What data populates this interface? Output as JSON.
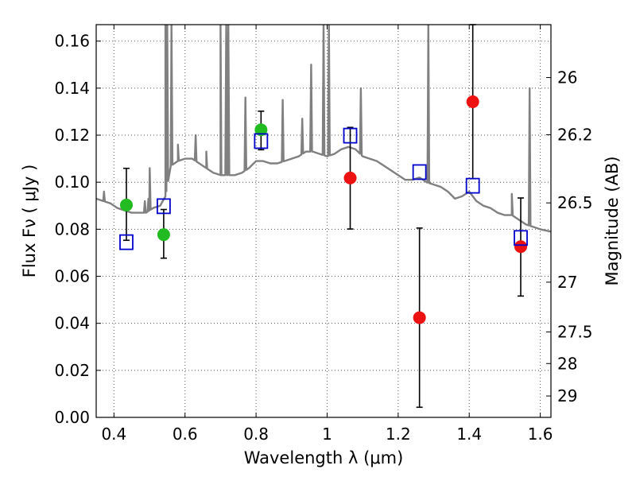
{
  "chart_data": {
    "type": "scatter",
    "xlabel": "Wavelength  λ (μm)",
    "ylabel": "Flux  Fν  ( μJy )",
    "ylabel_right": "Magnitude (AB)",
    "xlim": [
      0.35,
      1.63
    ],
    "ylim": [
      0.0,
      0.167
    ],
    "grid": true,
    "x_ticks": [
      0.4,
      0.6,
      0.8,
      1.0,
      1.2,
      1.4,
      1.6
    ],
    "x_tick_labels": [
      "0.4",
      "0.6",
      "0.8",
      "1",
      "1.2",
      "1.4",
      "1.6"
    ],
    "y_ticks": [
      0.0,
      0.02,
      0.04,
      0.06,
      0.08,
      0.1,
      0.12,
      0.14,
      0.16
    ],
    "y_tick_labels": [
      "0.00",
      "0.02",
      "0.04",
      "0.06",
      "0.08",
      "0.10",
      "0.12",
      "0.14",
      "0.16"
    ],
    "right_axis_ticks": [
      {
        "label": "26",
        "flux": 0.1445
      },
      {
        "label": "26.2",
        "flux": 0.1202
      },
      {
        "label": "26.5",
        "flux": 0.0912
      },
      {
        "label": "27",
        "flux": 0.0575
      },
      {
        "label": "27.5",
        "flux": 0.0363
      },
      {
        "label": "28",
        "flux": 0.0229
      },
      {
        "label": "29",
        "flux": 0.0091
      }
    ],
    "series": [
      {
        "kind": "observed-green",
        "color": "#22bb22",
        "points": [
          {
            "x": 0.435,
            "y": 0.0903,
            "err_lo": 0.0753,
            "err_hi": 0.1059
          },
          {
            "x": 0.54,
            "y": 0.0777,
            "err_lo": 0.0677,
            "err_hi": 0.0884
          },
          {
            "x": 0.814,
            "y": 0.1223,
            "err_lo": 0.1138,
            "err_hi": 0.1302
          }
        ]
      },
      {
        "kind": "observed-red",
        "color": "#ee1111",
        "points": [
          {
            "x": 1.065,
            "y": 0.1018,
            "err_lo": 0.0801,
            "err_hi": 0.1233
          },
          {
            "x": 1.26,
            "y": 0.0424,
            "err_lo": 0.0043,
            "err_hi": 0.0805
          },
          {
            "x": 1.41,
            "y": 0.1342,
            "err_lo": 0.1015,
            "err_hi": 0.167
          },
          {
            "x": 1.545,
            "y": 0.0726,
            "err_lo": 0.0516,
            "err_hi": 0.0933
          }
        ]
      },
      {
        "kind": "model-photometry",
        "color": "#0000cc",
        "points": [
          {
            "x": 0.435,
            "y": 0.0745
          },
          {
            "x": 0.54,
            "y": 0.0898
          },
          {
            "x": 0.814,
            "y": 0.1175
          },
          {
            "x": 1.065,
            "y": 0.1198
          },
          {
            "x": 1.26,
            "y": 0.1043
          },
          {
            "x": 1.41,
            "y": 0.0985
          },
          {
            "x": 1.545,
            "y": 0.0763
          }
        ]
      }
    ],
    "spectrum": {
      "color": "#808080",
      "continuum": [
        [
          0.35,
          0.093
        ],
        [
          0.37,
          0.092
        ],
        [
          0.39,
          0.091
        ],
        [
          0.41,
          0.089
        ],
        [
          0.43,
          0.088
        ],
        [
          0.45,
          0.087
        ],
        [
          0.47,
          0.087
        ],
        [
          0.49,
          0.087
        ],
        [
          0.51,
          0.089
        ],
        [
          0.53,
          0.09
        ],
        [
          0.545,
          0.094
        ],
        [
          0.56,
          0.107
        ],
        [
          0.58,
          0.109
        ],
        [
          0.6,
          0.11
        ],
        [
          0.62,
          0.11
        ],
        [
          0.64,
          0.108
        ],
        [
          0.66,
          0.106
        ],
        [
          0.68,
          0.104
        ],
        [
          0.7,
          0.103
        ],
        [
          0.72,
          0.103
        ],
        [
          0.74,
          0.103
        ],
        [
          0.76,
          0.104
        ],
        [
          0.78,
          0.106
        ],
        [
          0.8,
          0.109
        ],
        [
          0.82,
          0.109
        ],
        [
          0.84,
          0.108
        ],
        [
          0.86,
          0.108
        ],
        [
          0.88,
          0.109
        ],
        [
          0.9,
          0.11
        ],
        [
          0.92,
          0.111
        ],
        [
          0.94,
          0.113
        ],
        [
          0.96,
          0.113
        ],
        [
          0.98,
          0.112
        ],
        [
          1.0,
          0.111
        ],
        [
          1.02,
          0.112
        ],
        [
          1.04,
          0.114
        ],
        [
          1.06,
          0.115
        ],
        [
          1.08,
          0.114
        ],
        [
          1.1,
          0.111
        ],
        [
          1.12,
          0.11
        ],
        [
          1.14,
          0.109
        ],
        [
          1.16,
          0.107
        ],
        [
          1.18,
          0.105
        ],
        [
          1.2,
          0.103
        ],
        [
          1.22,
          0.101
        ],
        [
          1.24,
          0.101
        ],
        [
          1.26,
          0.102
        ],
        [
          1.28,
          0.1
        ],
        [
          1.3,
          0.099
        ],
        [
          1.32,
          0.098
        ],
        [
          1.34,
          0.096
        ],
        [
          1.36,
          0.093
        ],
        [
          1.38,
          0.094
        ],
        [
          1.4,
          0.096
        ],
        [
          1.42,
          0.092
        ],
        [
          1.44,
          0.09
        ],
        [
          1.46,
          0.089
        ],
        [
          1.48,
          0.087
        ],
        [
          1.5,
          0.086
        ],
        [
          1.52,
          0.086
        ],
        [
          1.54,
          0.084
        ],
        [
          1.56,
          0.082
        ],
        [
          1.58,
          0.081
        ],
        [
          1.6,
          0.08
        ],
        [
          1.63,
          0.079
        ]
      ],
      "emission_lines": [
        {
          "x": 0.372,
          "peak": 0.096
        },
        {
          "x": 0.487,
          "peak": 0.092
        },
        {
          "x": 0.497,
          "peak": 0.093
        },
        {
          "x": 0.5007,
          "peak": 0.106
        },
        {
          "x": 0.545,
          "peak": 0.167
        },
        {
          "x": 0.55,
          "peak": 0.167
        },
        {
          "x": 0.562,
          "peak": 0.167
        },
        {
          "x": 0.58,
          "peak": 0.116
        },
        {
          "x": 0.63,
          "peak": 0.12
        },
        {
          "x": 0.66,
          "peak": 0.113
        },
        {
          "x": 0.7,
          "peak": 0.167
        },
        {
          "x": 0.716,
          "peak": 0.167
        },
        {
          "x": 0.722,
          "peak": 0.167
        },
        {
          "x": 0.77,
          "peak": 0.136
        },
        {
          "x": 0.875,
          "peak": 0.135
        },
        {
          "x": 0.93,
          "peak": 0.127
        },
        {
          "x": 0.955,
          "peak": 0.15
        },
        {
          "x": 0.99,
          "peak": 0.167
        },
        {
          "x": 1.005,
          "peak": 0.167
        },
        {
          "x": 1.095,
          "peak": 0.14
        },
        {
          "x": 1.285,
          "peak": 0.167
        },
        {
          "x": 1.52,
          "peak": 0.095
        },
        {
          "x": 1.57,
          "peak": 0.14
        }
      ]
    }
  }
}
